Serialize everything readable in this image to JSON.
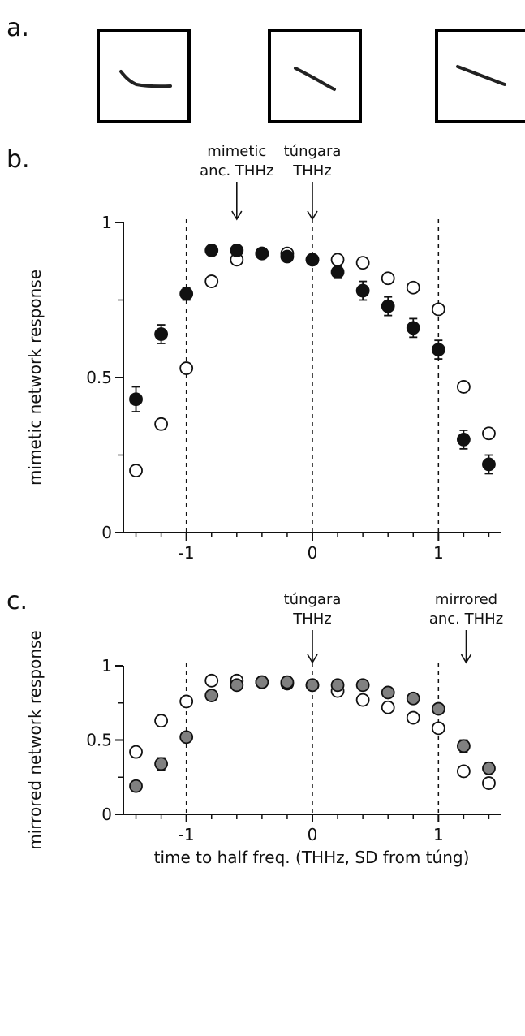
{
  "panels": {
    "a": {
      "label": "a."
    },
    "b": {
      "label": "b."
    },
    "c": {
      "label": "c."
    }
  },
  "chart_data": [
    {
      "type": "scatter",
      "panel": "b",
      "ylabel": "mimetic network response",
      "xlabel": "",
      "xlim": [
        -1.5,
        1.5
      ],
      "ylim": [
        0,
        1
      ],
      "xticks": [
        "-1",
        "0",
        "1"
      ],
      "yticks": [
        "0",
        "0.5",
        "1"
      ],
      "grid": false,
      "vlines_dashed": [
        -1,
        0,
        1
      ],
      "annotations": [
        {
          "lines": [
            "mimetic",
            "anc. THHz"
          ],
          "x": -0.6
        },
        {
          "lines": [
            "túngara",
            "THHz"
          ],
          "x": 0.0
        }
      ],
      "series": [
        {
          "marker": "filled-circle",
          "color": "#111111",
          "x": [
            -1.4,
            -1.2,
            -1.0,
            -0.8,
            -0.6,
            -0.4,
            -0.2,
            0.0,
            0.2,
            0.4,
            0.6,
            0.8,
            1.0,
            1.2,
            1.4
          ],
          "values": [
            0.43,
            0.64,
            0.77,
            0.91,
            0.91,
            0.9,
            0.89,
            0.88,
            0.84,
            0.78,
            0.73,
            0.66,
            0.59,
            0.3,
            0.22
          ],
          "error": [
            0.04,
            0.03,
            0.02,
            0.01,
            0.01,
            0.01,
            0.01,
            0.01,
            0.02,
            0.03,
            0.03,
            0.03,
            0.03,
            0.03,
            0.03
          ]
        },
        {
          "marker": "open-circle",
          "color": "#111111",
          "x": [
            -1.4,
            -1.2,
            -1.0,
            -0.8,
            -0.6,
            -0.4,
            -0.2,
            0.0,
            0.2,
            0.4,
            0.6,
            0.8,
            1.0,
            1.2,
            1.4
          ],
          "values": [
            0.2,
            0.35,
            0.53,
            0.81,
            0.88,
            0.9,
            0.9,
            0.88,
            0.88,
            0.87,
            0.82,
            0.79,
            0.72,
            0.47,
            0.32
          ]
        }
      ]
    },
    {
      "type": "scatter",
      "panel": "c",
      "ylabel": "mirrored network response",
      "xlabel": "time to half freq. (THHz, SD from túng)",
      "xlim": [
        -1.5,
        1.5
      ],
      "ylim": [
        0,
        1
      ],
      "xticks": [
        "-1",
        "0",
        "1"
      ],
      "yticks": [
        "0",
        "0.5",
        "1"
      ],
      "grid": false,
      "vlines_dashed": [
        -1,
        0,
        1
      ],
      "annotations": [
        {
          "lines": [
            "túngara",
            "THHz"
          ],
          "x": 0.0
        },
        {
          "lines": [
            "mirrored",
            "anc. THHz"
          ],
          "x": 1.22
        }
      ],
      "series": [
        {
          "marker": "gray-circle",
          "color": "#808080",
          "x": [
            -1.4,
            -1.2,
            -1.0,
            -0.8,
            -0.6,
            -0.4,
            -0.2,
            0.0,
            0.2,
            0.4,
            0.6,
            0.8,
            1.0,
            1.2,
            1.4
          ],
          "values": [
            0.19,
            0.34,
            0.52,
            0.8,
            0.87,
            0.89,
            0.89,
            0.87,
            0.87,
            0.87,
            0.82,
            0.78,
            0.71,
            0.46,
            0.31
          ],
          "error": [
            0.03,
            0.04,
            0.03,
            0.03,
            0.02,
            0.01,
            0.02,
            0.02,
            0.02,
            0.02,
            0.02,
            0.03,
            0.03,
            0.04,
            0.03
          ]
        },
        {
          "marker": "open-circle",
          "color": "#111111",
          "x": [
            -1.4,
            -1.2,
            -1.0,
            -0.8,
            -0.6,
            -0.4,
            -0.2,
            0.0,
            0.2,
            0.4,
            0.6,
            0.8,
            1.0,
            1.2,
            1.4
          ],
          "values": [
            0.42,
            0.63,
            0.76,
            0.9,
            0.9,
            0.89,
            0.88,
            0.87,
            0.83,
            0.77,
            0.72,
            0.65,
            0.58,
            0.29,
            0.21
          ]
        }
      ]
    }
  ]
}
